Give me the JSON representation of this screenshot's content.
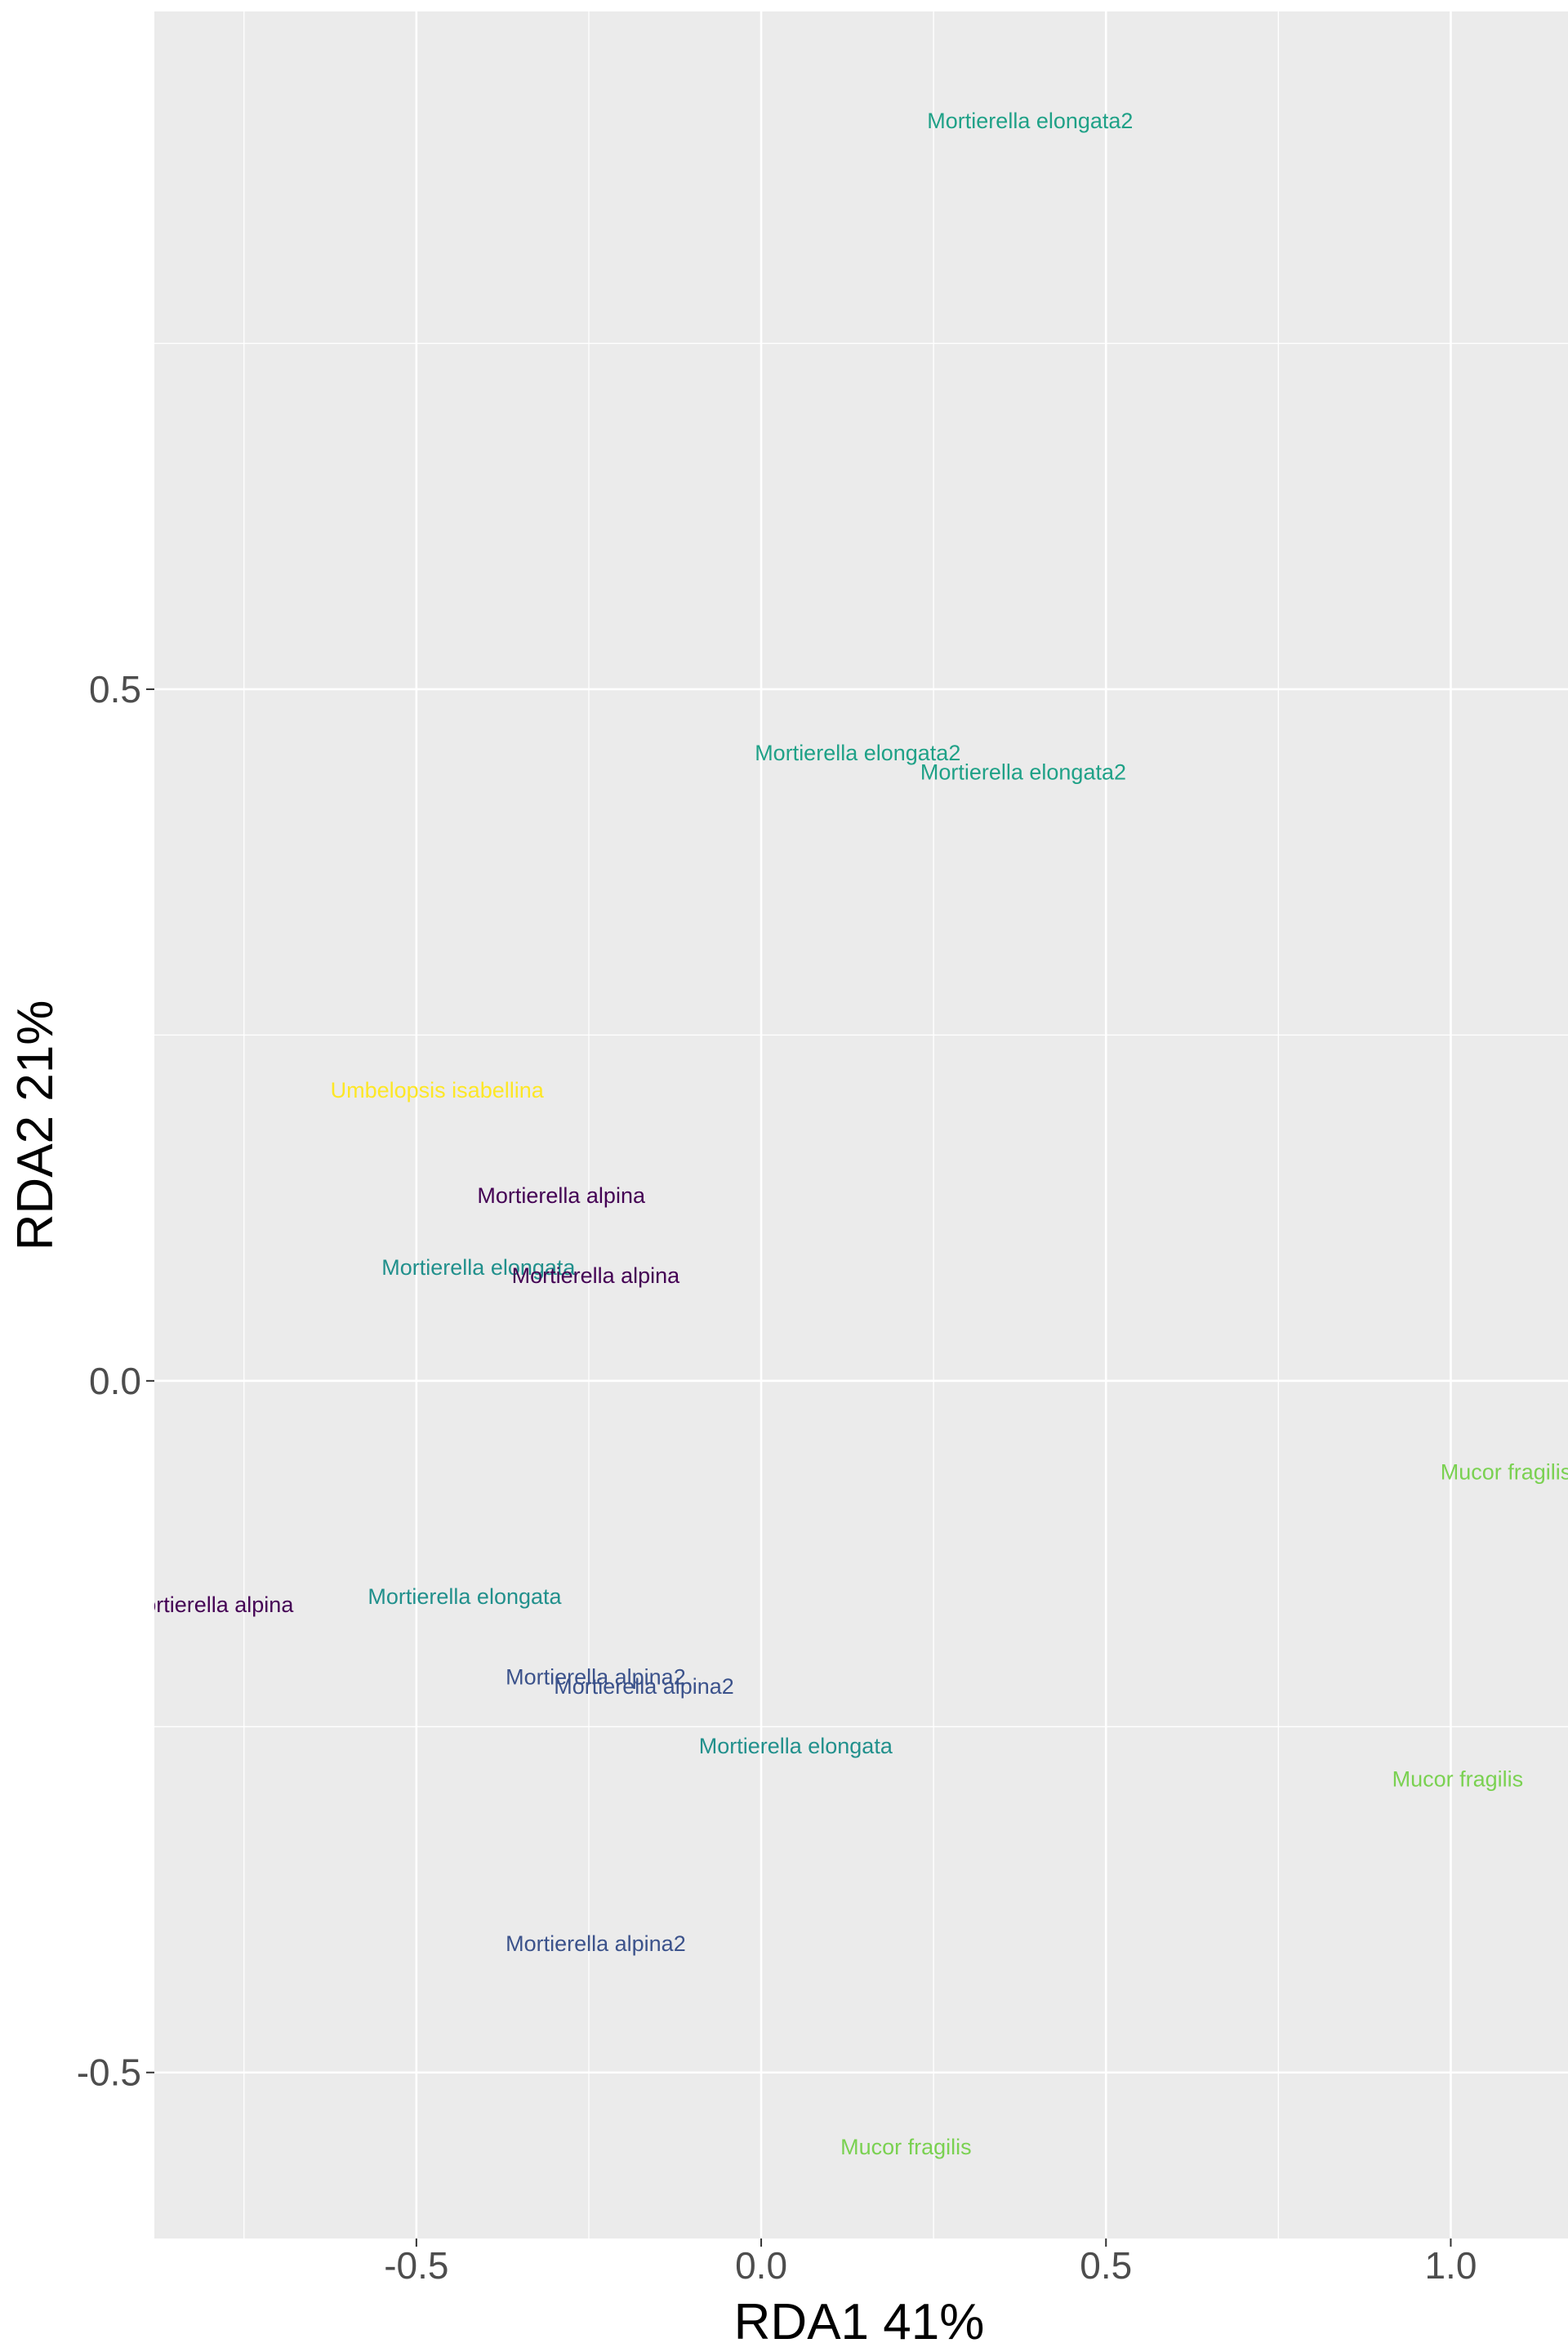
{
  "chart_data": {
    "type": "scatter",
    "title": "",
    "xlabel": "RDA1 41%",
    "ylabel": "RDA2 21%",
    "xlim": [
      -0.88,
      1.17
    ],
    "ylim": [
      -0.62,
      0.99
    ],
    "x_ticks": [
      -0.5,
      0.0,
      0.5,
      1.0
    ],
    "x_tick_labels": [
      "-0.5",
      "0.0",
      "0.5",
      "1.0"
    ],
    "y_ticks": [
      -0.5,
      0.0,
      0.5
    ],
    "y_tick_labels": [
      "-0.5",
      "0.0",
      "0.5"
    ],
    "grid": true,
    "legend": "none",
    "colors": {
      "panel": "#ebebeb",
      "grid": "#ffffff",
      "tick": "#4d4d4d",
      "Mortierella alpina": "#440154",
      "Mortierella alpina2": "#3b528b",
      "Mortierella elongata": "#21908c",
      "Mortierella elongata2": "#1fa187",
      "Mucor fragilis": "#7ad151",
      "Umbelopsis isabellina": "#fde725"
    },
    "points": [
      {
        "label": "Mortierella elongata2",
        "x": 0.39,
        "y": 0.911
      },
      {
        "label": "Mortierella elongata2",
        "x": 0.14,
        "y": 0.454
      },
      {
        "label": "Mortierella elongata2",
        "x": 0.38,
        "y": 0.44
      },
      {
        "label": "Umbelopsis isabellina",
        "x": -0.47,
        "y": 0.21
      },
      {
        "label": "Mortierella alpina",
        "x": -0.29,
        "y": 0.134
      },
      {
        "label": "Mortierella elongata",
        "x": -0.41,
        "y": 0.082
      },
      {
        "label": "Mortierella alpina",
        "x": -0.24,
        "y": 0.076
      },
      {
        "label": "Mucor fragilis",
        "x": 1.08,
        "y": -0.066
      },
      {
        "label": "Mortierella alpina",
        "x": -0.8,
        "y": -0.162
      },
      {
        "label": "Mortierella elongata",
        "x": -0.43,
        "y": -0.156
      },
      {
        "label": "Mortierella alpina2",
        "x": -0.24,
        "y": -0.214
      },
      {
        "label": "Mortierella alpina2",
        "x": -0.17,
        "y": -0.221
      },
      {
        "label": "Mortierella elongata",
        "x": 0.05,
        "y": -0.264
      },
      {
        "label": "Mucor fragilis",
        "x": 1.01,
        "y": -0.288
      },
      {
        "label": "Mortierella alpina2",
        "x": -0.24,
        "y": -0.407
      },
      {
        "label": "Mucor fragilis",
        "x": 0.21,
        "y": -0.554
      }
    ]
  }
}
